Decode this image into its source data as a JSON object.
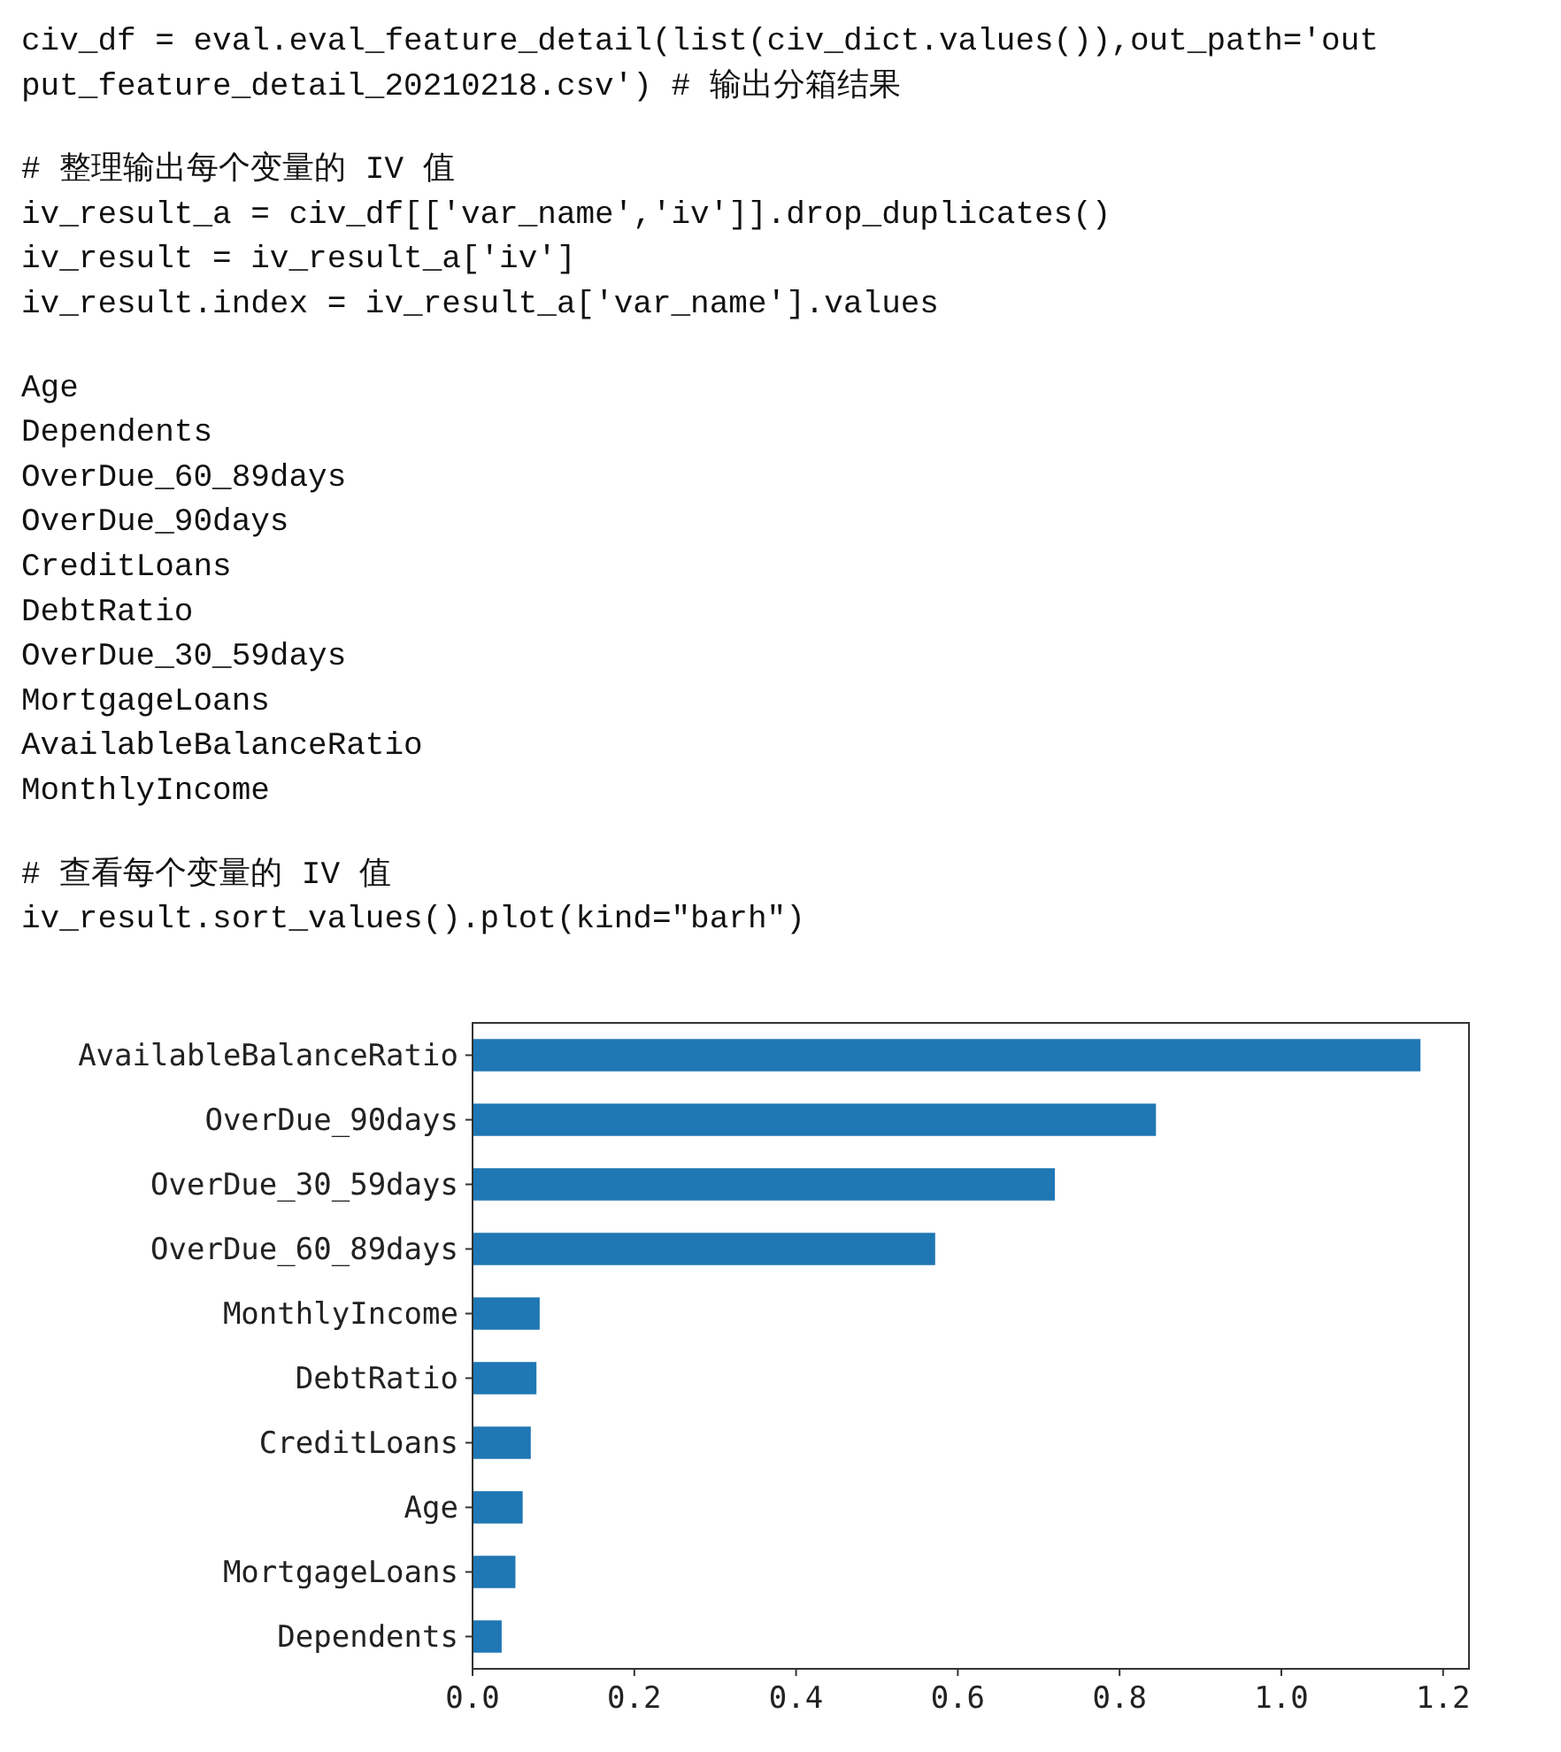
{
  "chart_data": {
    "type": "bar",
    "orientation": "horizontal",
    "annotations": [
      "civ_df = eval.eval_feature_detail(list(civ_dict.values()),out_path='out",
      "put_feature_detail_20210218.csv') # 输出分箱结果",
      "# 整理输出每个变量的 IV 值",
      "iv_result_a = civ_df[['var_name','iv']].drop_duplicates()",
      "iv_result = iv_result_a['iv']",
      "iv_result.index = iv_result_a['var_name'].values",
      "Age",
      "Dependents",
      "OverDue_60_89days",
      "OverDue_90days",
      "CreditLoans",
      "DebtRatio",
      "OverDue_30_59days",
      "MortgageLoans",
      "AvailableBalanceRatio",
      "MonthlyIncome",
      "# 查看每个变量的 IV 值",
      "iv_result.sort_values().plot(kind=\"barh\")"
    ],
    "categories": [
      "AvailableBalanceRatio",
      "OverDue_90days",
      "OverDue_30_59days",
      "OverDue_60_89days",
      "MonthlyIncome",
      "DebtRatio",
      "CreditLoans",
      "Age",
      "MortgageLoans",
      "Dependents"
    ],
    "values": [
      1.172,
      0.845,
      0.72,
      0.572,
      0.083,
      0.079,
      0.072,
      0.062,
      0.053,
      0.036
    ],
    "color": "#1f77b4",
    "xlim": [
      0,
      1.232
    ],
    "xticks": [
      {
        "value": 0,
        "label": "0.0"
      },
      {
        "value": 0.2,
        "label": "0.2"
      },
      {
        "value": 0.4,
        "label": "0.4"
      },
      {
        "value": 0.6,
        "label": "0.6"
      },
      {
        "value": 0.8,
        "label": "0.8"
      },
      {
        "value": 1.0,
        "label": "1.0"
      },
      {
        "value": 1.2,
        "label": "1.2"
      }
    ],
    "grid": false
  }
}
